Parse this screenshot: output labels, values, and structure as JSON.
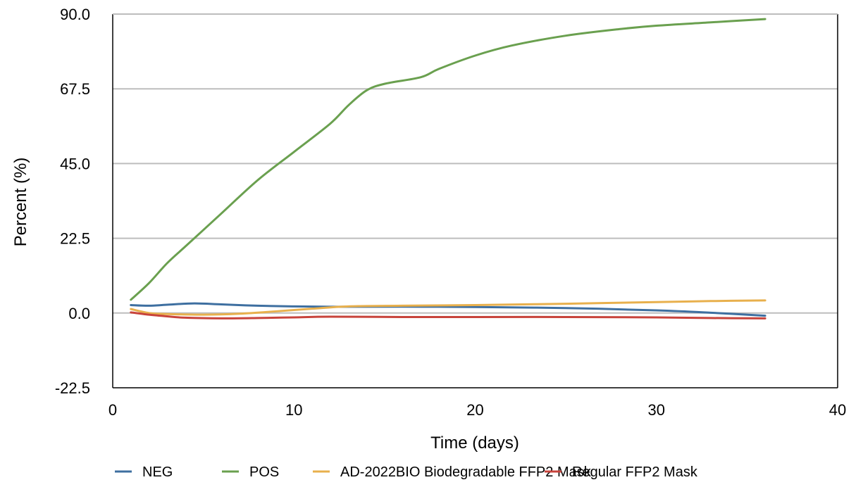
{
  "chart_data": {
    "type": "line",
    "title": "",
    "xlabel": "Time (days)",
    "ylabel": "Percent (%)",
    "xlim": [
      0,
      40
    ],
    "ylim": [
      -22.5,
      90.0
    ],
    "xticks": [
      0,
      10,
      20,
      30,
      40
    ],
    "xtick_labels": [
      "0",
      "10",
      "20",
      "30",
      "40"
    ],
    "yticks": [
      -22.5,
      0.0,
      22.5,
      45.0,
      67.5,
      90.0
    ],
    "ytick_labels": [
      "-22.5",
      "0.0",
      "22.5",
      "45.0",
      "67.5",
      "90.0"
    ],
    "grid": "horizontal",
    "legend_position": "bottom",
    "series": [
      {
        "name": "NEG",
        "color": "#3e6fa0",
        "x": [
          1,
          2,
          3,
          4.5,
          6,
          8,
          10,
          12,
          14,
          17,
          20,
          25,
          30,
          33,
          36
        ],
        "y": [
          2.4,
          2.2,
          2.5,
          2.9,
          2.6,
          2.2,
          2.0,
          1.9,
          1.9,
          1.9,
          1.8,
          1.5,
          0.8,
          0.1,
          -0.8
        ]
      },
      {
        "name": "POS",
        "color": "#6aa04f",
        "x": [
          1,
          2,
          3,
          4,
          5,
          6,
          8,
          10,
          12,
          13,
          14,
          15,
          17,
          18,
          20,
          22,
          25,
          28,
          30,
          33,
          36
        ],
        "y": [
          4,
          9,
          15,
          20,
          25,
          30,
          40,
          48.5,
          57,
          62.5,
          67,
          69,
          71,
          73.5,
          77.5,
          80.5,
          83.5,
          85.5,
          86.5,
          87.5,
          88.5
        ]
      },
      {
        "name": "AD-2022BIO Biodegradable FFP2 Mask",
        "color": "#e8b04d",
        "x": [
          1,
          2,
          3,
          5,
          7,
          9,
          11,
          13,
          16,
          20,
          25,
          30,
          33,
          36
        ],
        "y": [
          1.2,
          0.0,
          -0.3,
          -0.5,
          -0.2,
          0.5,
          1.3,
          2.0,
          2.2,
          2.4,
          2.8,
          3.3,
          3.6,
          3.8
        ]
      },
      {
        "name": "Regular FFP2 Mask",
        "color": "#c8433b",
        "x": [
          1,
          2,
          3,
          4,
          6,
          8,
          10,
          12,
          16,
          20,
          25,
          30,
          33,
          36
        ],
        "y": [
          0.2,
          -0.5,
          -1.0,
          -1.4,
          -1.6,
          -1.5,
          -1.3,
          -1.1,
          -1.2,
          -1.2,
          -1.2,
          -1.3,
          -1.5,
          -1.6
        ]
      }
    ]
  }
}
